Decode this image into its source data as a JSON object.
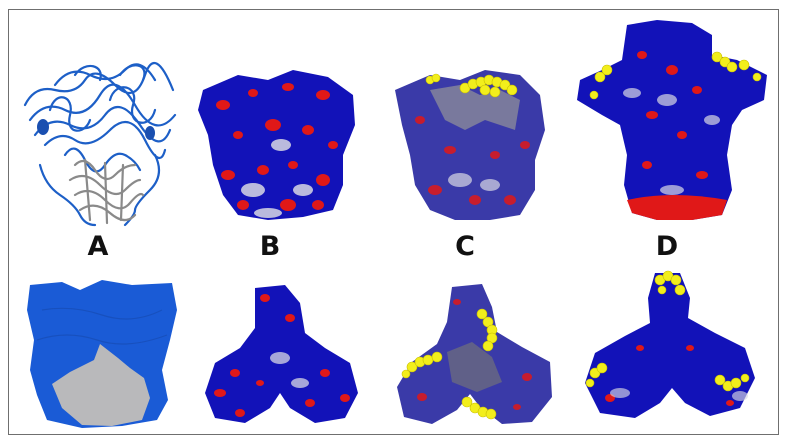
{
  "figure": {
    "labels": [
      "A",
      "B",
      "C",
      "D"
    ]
  },
  "colors": {
    "ribbon_blue": "#1d5fc7",
    "ribbon_gray": "#8a8a8a",
    "surface_blue": "#1a5bd6",
    "surface_gray": "#b9b9bb",
    "electro_blue": "#1212b8",
    "electro_red": "#e01818",
    "electro_white": "#d8d8e4",
    "highlight_yellow": "#f2ee1c",
    "frame_border": "#6f6f6f"
  },
  "panels": [
    {
      "id": "A-top",
      "representation": "cartoon"
    },
    {
      "id": "B-top",
      "representation": "electrostatic-surface"
    },
    {
      "id": "C-top",
      "representation": "electrostatic-surface-with-highlight"
    },
    {
      "id": "D-top",
      "representation": "electrostatic-surface-with-highlight"
    },
    {
      "id": "A-bottom",
      "representation": "surface"
    },
    {
      "id": "B-bottom",
      "representation": "electrostatic-surface"
    },
    {
      "id": "C-bottom",
      "representation": "electrostatic-surface-with-highlight"
    },
    {
      "id": "D-bottom",
      "representation": "electrostatic-surface-with-highlight"
    }
  ]
}
